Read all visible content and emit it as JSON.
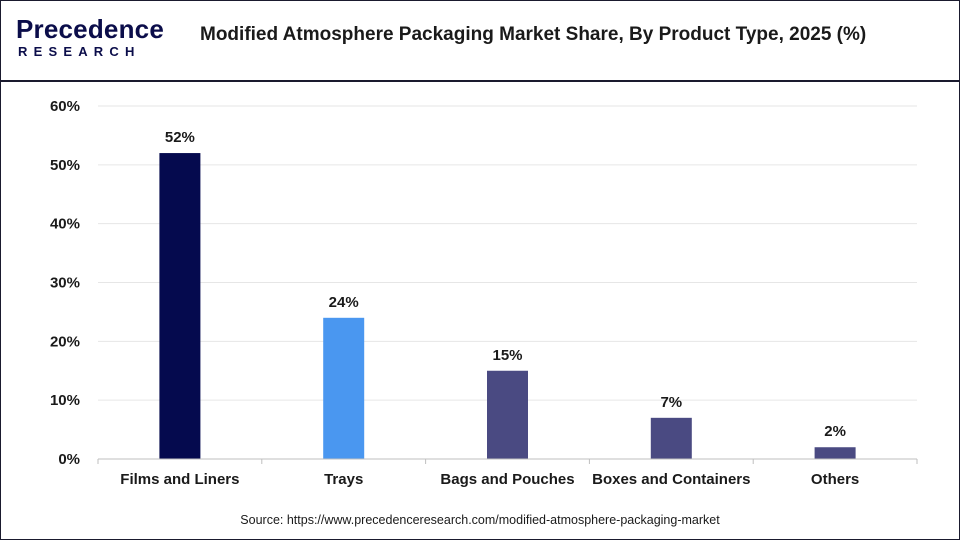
{
  "header": {
    "logo_top": "recedence",
    "logo_letter": "P",
    "logo_bottom": "RESEARCH",
    "title": "Modified Atmosphere Packaging Market Share, By Product Type, 2025 (%)"
  },
  "source": "Source: https://www.precedenceresearch.com/modified-atmosphere-packaging-market",
  "colors": {
    "brand": "#0b0d4a",
    "films": "#050a4e",
    "trays": "#4a97f0",
    "bags": "#4a4a82",
    "boxes": "#4a4a82",
    "others": "#4a4a82",
    "grid": "#e6e6e6"
  },
  "chart_data": {
    "type": "bar",
    "title": "Modified Atmosphere Packaging Market Share, By Product Type, 2025 (%)",
    "xlabel": "",
    "ylabel": "",
    "categories": [
      "Films and Liners",
      "Trays",
      "Bags and Pouches",
      "Boxes and Containers",
      "Others"
    ],
    "values": [
      52,
      24,
      15,
      7,
      2
    ],
    "data_labels": [
      "52%",
      "24%",
      "15%",
      "7%",
      "2%"
    ],
    "bar_colors": [
      "#050a4e",
      "#4a97f0",
      "#4a4a82",
      "#4a4a82",
      "#4a4a82"
    ],
    "ylim": [
      0,
      60
    ],
    "yticks": [
      0,
      10,
      20,
      30,
      40,
      50,
      60
    ],
    "ytick_labels": [
      "0%",
      "10%",
      "20%",
      "30%",
      "40%",
      "50%",
      "60%"
    ],
    "grid": true,
    "legend": "none"
  }
}
